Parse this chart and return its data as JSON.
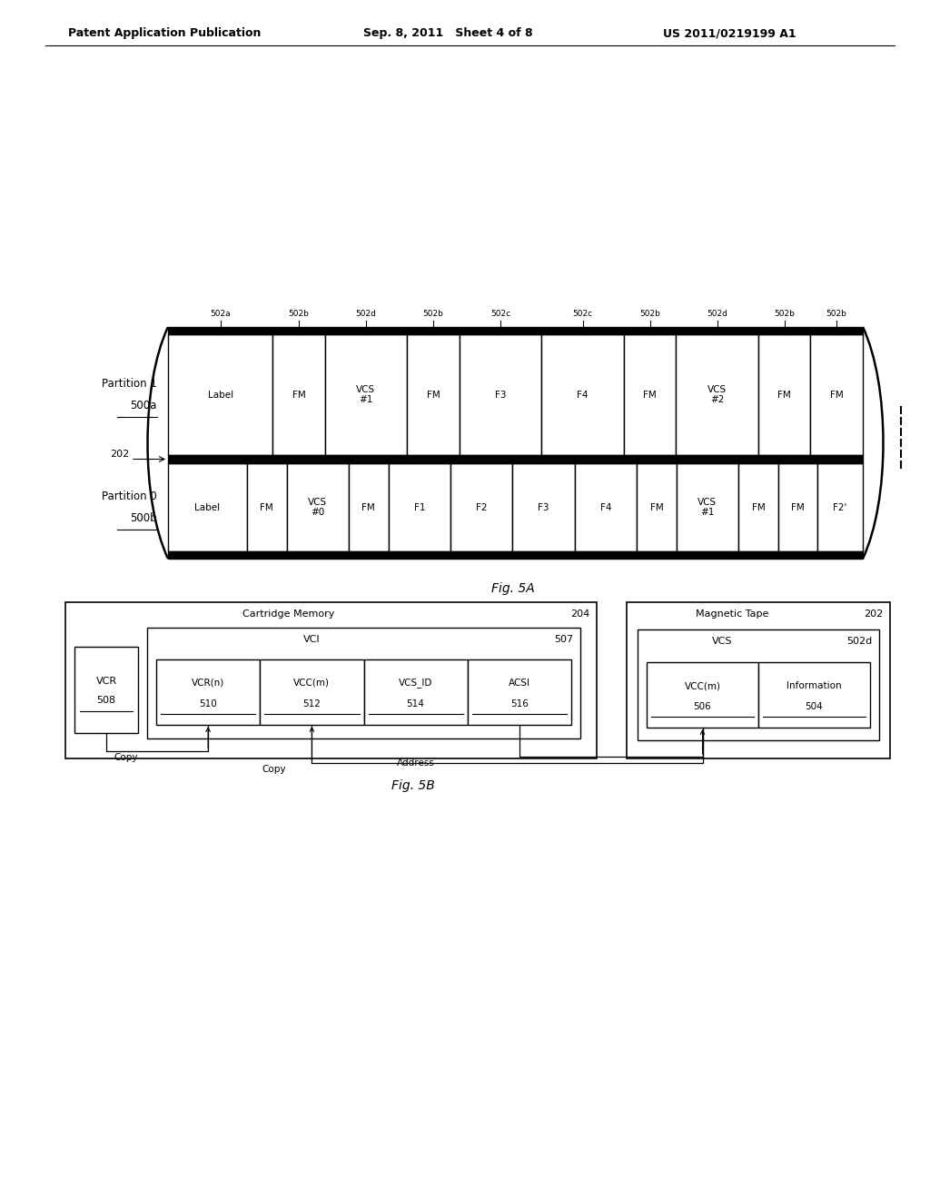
{
  "header_left": "Patent Application Publication",
  "header_mid": "Sep. 8, 2011   Sheet 4 of 8",
  "header_right": "US 2011/0219199 A1",
  "fig5a_label": "Fig. 5A",
  "fig5b_label": "Fig. 5B",
  "partition1_label": "Partition 1",
  "partition1_ref": "500a",
  "partition0_label": "Partition 0",
  "partition0_ref": "500b",
  "tape_ref": "202",
  "p1_cells": [
    "Label",
    "FM",
    "VCS\n#1",
    "FM",
    "F3",
    "F4",
    "FM",
    "VCS\n#2",
    "FM",
    "FM"
  ],
  "p1_widths": [
    1.4,
    0.7,
    1.1,
    0.7,
    1.1,
    1.1,
    0.7,
    1.1,
    0.7,
    0.7
  ],
  "p1_labels_top": [
    "502a",
    "502b",
    "502d",
    "502b",
    "502c",
    "502c",
    "502b",
    "502d",
    "502b",
    "502b"
  ],
  "p0_cells": [
    "Label",
    "FM",
    "VCS\n#0",
    "FM",
    "F1",
    "F2",
    "F3",
    "F4",
    "FM",
    "VCS\n#1",
    "FM",
    "FM",
    "F2'"
  ],
  "p0_widths": [
    1.4,
    0.7,
    1.1,
    0.7,
    1.1,
    1.1,
    1.1,
    1.1,
    0.7,
    1.1,
    0.7,
    0.7,
    0.8
  ],
  "cm_title": "Cartridge Memory",
  "cm_ref": "204",
  "vci_title": "VCI",
  "vci_ref": "507",
  "mt_title": "Magnetic Tape",
  "mt_ref": "202",
  "vcs_title": "VCS",
  "vcs_ref": "502d",
  "vcr_label": "VCR",
  "vcr_ref": "508",
  "vcrn_label": "VCR(n)",
  "vcrn_ref": "510",
  "vccm_label": "VCC(m)",
  "vccm_ref": "512",
  "vcsid_label": "VCS_ID",
  "vcsid_ref": "514",
  "acsi_label": "ACSI",
  "acsi_ref": "516",
  "vccm2_label": "VCC(m)",
  "vccm2_ref": "506",
  "info_label": "Information",
  "info_ref": "504",
  "bg_color": "#ffffff",
  "box_color": "#000000",
  "text_color": "#000000"
}
